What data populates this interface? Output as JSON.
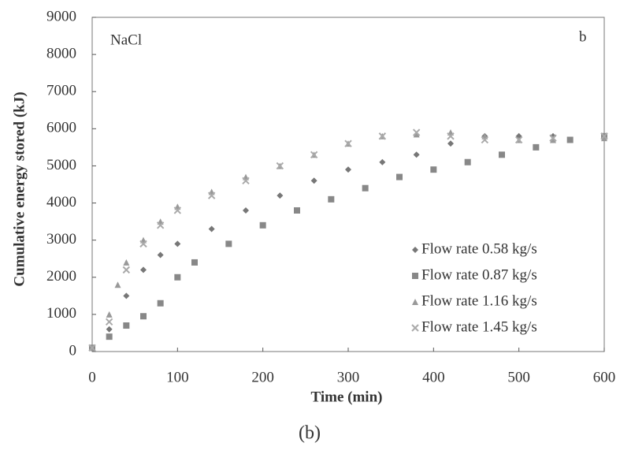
{
  "chart_data": {
    "type": "scatter",
    "annotations": [
      "NaCl",
      "b"
    ],
    "xlabel": "Time (min)",
    "ylabel": "Cumulative energy stored  (kJ)",
    "caption": "(b)",
    "xlim": [
      0,
      600
    ],
    "xticks": [
      0,
      100,
      200,
      300,
      400,
      500,
      600
    ],
    "ylim": [
      0,
      9000
    ],
    "yticks": [
      0,
      1000,
      2000,
      3000,
      4000,
      5000,
      6000,
      7000,
      8000,
      9000
    ],
    "grid": false,
    "legend": "lower right",
    "series": [
      {
        "name": "Flow rate  0.58 kg/s",
        "color": "#777777",
        "marker": "diamond",
        "x": [
          0,
          20,
          40,
          60,
          80,
          100,
          140,
          180,
          220,
          260,
          300,
          340,
          380,
          420,
          460,
          500,
          540,
          600
        ],
        "values": [
          100,
          600,
          1500,
          2200,
          2600,
          2900,
          3300,
          3800,
          4200,
          4600,
          4900,
          5100,
          5300,
          5600,
          5800,
          5800,
          5800,
          5800
        ]
      },
      {
        "name": "Flow  rate 0.87 kg/s",
        "color": "#888888",
        "marker": "square",
        "x": [
          0,
          20,
          40,
          60,
          80,
          100,
          120,
          160,
          200,
          240,
          280,
          320,
          360,
          400,
          440,
          480,
          520,
          560,
          600
        ],
        "values": [
          100,
          400,
          700,
          950,
          1300,
          2000,
          2400,
          2900,
          3400,
          3800,
          4100,
          4400,
          4700,
          4900,
          5100,
          5300,
          5500,
          5700,
          5800
        ]
      },
      {
        "name": "Flow rate 1.16 kg/s",
        "color": "#999999",
        "marker": "triangle",
        "x": [
          0,
          20,
          30,
          40,
          60,
          80,
          100,
          140,
          180,
          220,
          260,
          300,
          340,
          380,
          420,
          460,
          500,
          540,
          600
        ],
        "values": [
          100,
          1000,
          1800,
          2400,
          3000,
          3500,
          3900,
          4300,
          4700,
          5000,
          5300,
          5600,
          5800,
          5850,
          5900,
          5800,
          5700,
          5700,
          5750
        ]
      },
      {
        "name": "Flow rate 1.45 kg/s",
        "color": "#aaaaaa",
        "marker": "cross",
        "x": [
          0,
          20,
          40,
          60,
          80,
          100,
          140,
          180,
          220,
          260,
          300,
          340,
          380,
          420,
          460,
          500,
          540,
          600
        ],
        "values": [
          100,
          800,
          2200,
          2900,
          3400,
          3800,
          4200,
          4600,
          5000,
          5300,
          5600,
          5800,
          5900,
          5800,
          5700,
          5700,
          5750,
          5800
        ]
      }
    ]
  }
}
